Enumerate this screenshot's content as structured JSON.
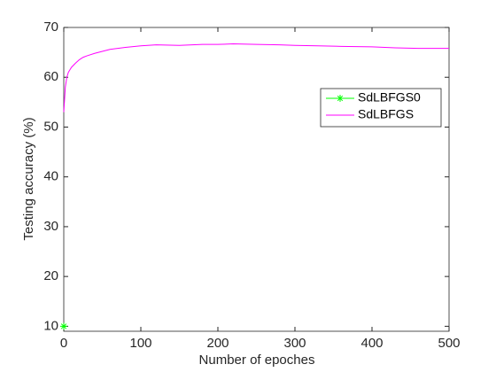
{
  "chart_data": {
    "type": "line",
    "xlabel": "Number of epoches",
    "ylabel": "Testing accuracy (%)",
    "xlim": [
      0,
      500
    ],
    "xticks": [
      0,
      100,
      200,
      300,
      400,
      500
    ],
    "ylim": [
      9,
      70
    ],
    "yticks": [
      10,
      20,
      30,
      40,
      50,
      60,
      70
    ],
    "legend": "northeast",
    "series": [
      {
        "name": "SdLBFGS0",
        "color": "#00ff00",
        "marker": "*",
        "x": [
          0
        ],
        "values": [
          10
        ]
      },
      {
        "name": "SdLBFGS",
        "color": "#ff00ff",
        "x": [
          0,
          2,
          4,
          6,
          8,
          10,
          15,
          20,
          25,
          30,
          40,
          50,
          60,
          80,
          100,
          120,
          150,
          180,
          200,
          220,
          250,
          280,
          300,
          330,
          360,
          400,
          430,
          460,
          500
        ],
        "values": [
          53,
          58,
          60,
          61,
          61.5,
          62,
          62.8,
          63.5,
          64,
          64.3,
          64.8,
          65.2,
          65.6,
          66,
          66.3,
          66.5,
          66.4,
          66.6,
          66.6,
          66.7,
          66.6,
          66.5,
          66.4,
          66.3,
          66.2,
          66.1,
          65.9,
          65.8,
          65.8
        ]
      }
    ]
  }
}
